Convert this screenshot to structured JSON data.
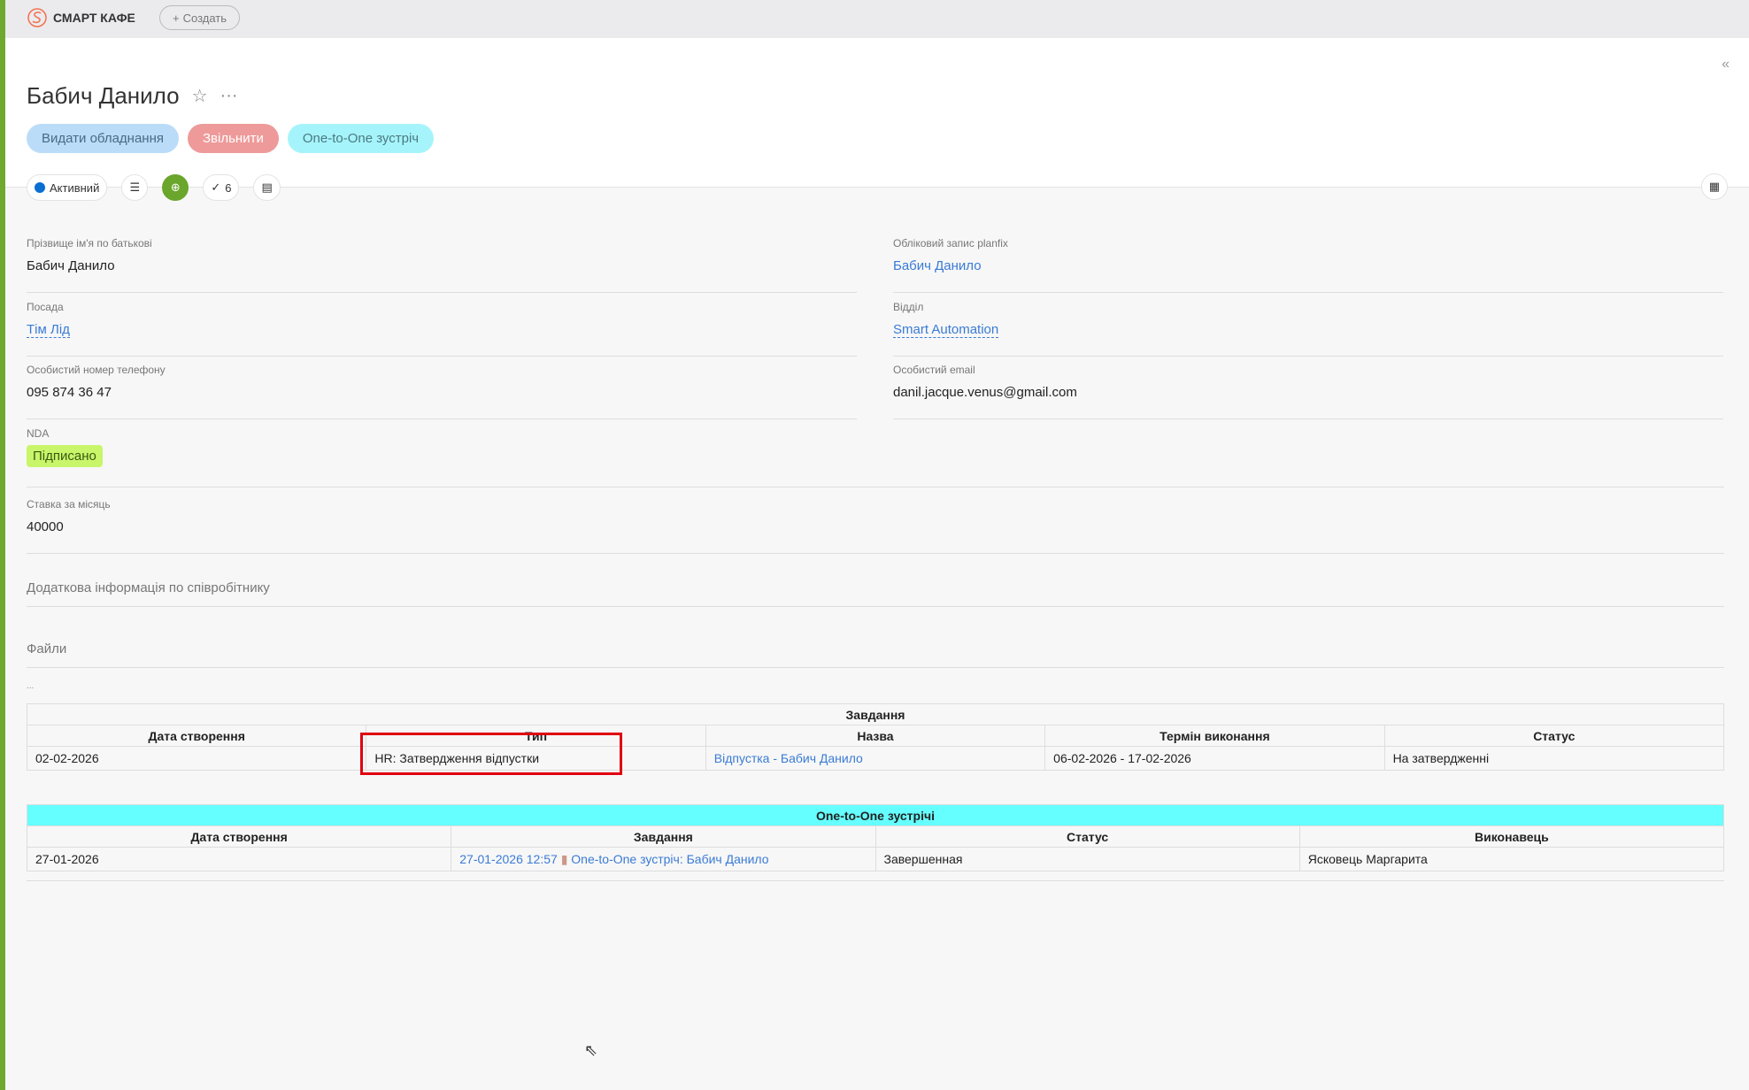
{
  "app": {
    "brand": "СМАРТ КАФЕ",
    "create_label": "Создать"
  },
  "page": {
    "title": "Бабич Данило"
  },
  "actions": [
    "Видати обладнання",
    "Звільнити",
    "One-to-One зустріч"
  ],
  "toolbar": {
    "status": "Активний",
    "tasks_count": "6"
  },
  "fields": {
    "fio": {
      "label": "Прізвище ім'я по батькові",
      "value": "Бабич Данило"
    },
    "account": {
      "label": "Обліковий запис planfix",
      "value": "Бабич Данило"
    },
    "position": {
      "label": "Посада",
      "value": "Тім Лід"
    },
    "department": {
      "label": "Відділ",
      "value": "Smart Automation"
    },
    "phone": {
      "label": "Особистий номер телефону",
      "value": "095 874 36 47"
    },
    "email": {
      "label": "Особистий email",
      "value": "danil.jacque.venus@gmail.com"
    },
    "nda": {
      "label": "NDA",
      "value": "Підписано"
    },
    "salary": {
      "label": "Ставка за місяць",
      "value": "40000"
    }
  },
  "sections": {
    "extra": "Додаткова інформація по співробітнику",
    "files": "Файли",
    "ellipsis": "..."
  },
  "tasks_table": {
    "caption": "Завдання",
    "headers": [
      "Дата створення",
      "Тип",
      "Назва",
      "Термін виконання",
      "Статус"
    ],
    "rows": [
      [
        "02-02-2026",
        "HR: Затвердження відпустки",
        "Відпустка - Бабич Данило",
        "06-02-2026 - 17-02-2026",
        "На затвердженні"
      ]
    ]
  },
  "meetings_table": {
    "caption": "One-to-One зустрічі",
    "headers": [
      "Дата створення",
      "Завдання",
      "Статус",
      "Виконавець"
    ],
    "rows": [
      {
        "date": "27-01-2026",
        "task_time": "27-01-2026 12:57",
        "task_name": "One-to-One зустріч: Бабич Данило",
        "status": "Завершенная",
        "assignee": "Ясковець Маргарита"
      }
    ]
  },
  "colors": {
    "accent": "#6aa52c",
    "link": "#3a7bd5",
    "highlight": "#66ffff",
    "annotation": "#e00010"
  }
}
